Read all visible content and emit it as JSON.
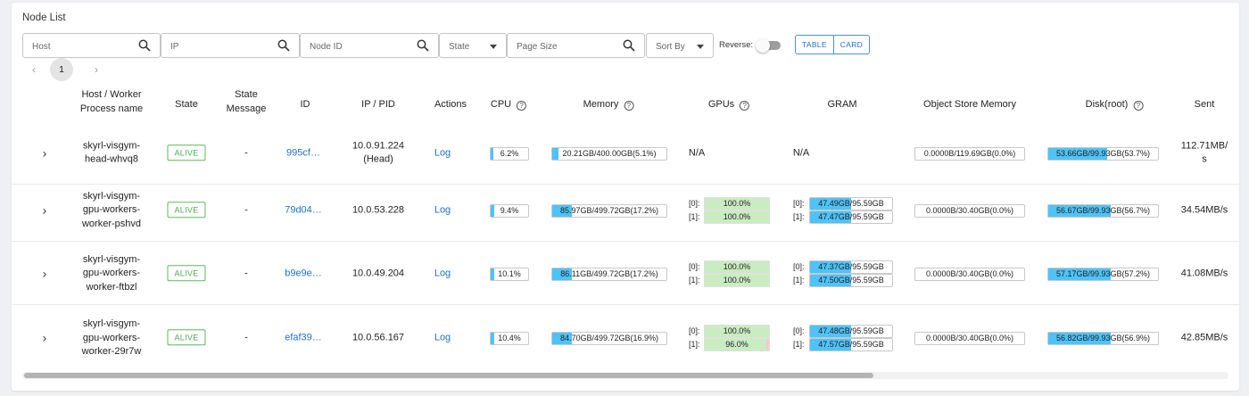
{
  "title": "Node List",
  "filters": {
    "host_placeholder": "Host",
    "ip_placeholder": "IP",
    "node_id_placeholder": "Node ID",
    "state_label": "State",
    "page_size_placeholder": "Page Size",
    "sort_by_label": "Sort By",
    "reverse_label": "Reverse:",
    "reverse_on": false
  },
  "view": {
    "table_label": "TABLE",
    "card_label": "CARD"
  },
  "pagination": {
    "prev": "‹",
    "current": "1",
    "next": "›"
  },
  "columns": {
    "host": "Host / Worker Process name",
    "state": "State",
    "state_message": "State Message",
    "id": "ID",
    "ip_pid": "IP / PID",
    "actions": "Actions",
    "cpu": "CPU",
    "memory": "Memory",
    "gpus": "GPUs",
    "gram": "GRAM",
    "object_store": "Object Store Memory",
    "disk": "Disk(root)",
    "sent": "Sent"
  },
  "help_glyph": "?",
  "expand_glyph": "›",
  "rows": [
    {
      "host": [
        "skyrl-visgym-",
        "head-whvq8"
      ],
      "state": "ALIVE",
      "state_message": "-",
      "id": "995cf…",
      "ip": [
        "10.0.91.224",
        "(Head)"
      ],
      "action": "Log",
      "cpu": {
        "text": "6.2%",
        "pct": 6.2
      },
      "memory": {
        "text": "20.21GB/400.00GB(5.1%)",
        "pct": 5.1
      },
      "gpus_na": "N/A",
      "gram_na": "N/A",
      "gpus": [],
      "gram": [],
      "object_store": "0.0000B/119.69GB(0.0%)",
      "disk": {
        "text": "53.66GB/99.93GB(53.7%)",
        "pct": 53.7
      },
      "sent": [
        "112.71MB/",
        "s"
      ]
    },
    {
      "host": [
        "skyrl-visgym-",
        "gpu-workers-",
        "worker-pshvd"
      ],
      "state": "ALIVE",
      "state_message": "-",
      "id": "79d04…",
      "ip": [
        "10.0.53.228"
      ],
      "action": "Log",
      "cpu": {
        "text": "9.4%",
        "pct": 9.4
      },
      "memory": {
        "text": "85.97GB/499.72GB(17.2%)",
        "pct": 17.2
      },
      "gpus": [
        {
          "label": "[0]:",
          "text": "100.0%",
          "pct": 100
        },
        {
          "label": "[1]:",
          "text": "100.0%",
          "pct": 100
        }
      ],
      "gram": [
        {
          "label": "[0]:",
          "text": "47.49GB/95.59GB",
          "pct": 49.7
        },
        {
          "label": "[1]:",
          "text": "47.47GB/95.59GB",
          "pct": 49.7
        }
      ],
      "object_store": "0.0000B/30.40GB(0.0%)",
      "disk": {
        "text": "56.67GB/99.93GB(56.7%)",
        "pct": 56.7
      },
      "sent": [
        "34.54MB/s"
      ]
    },
    {
      "host": [
        "skyrl-visgym-",
        "gpu-workers-",
        "worker-ftbzl"
      ],
      "state": "ALIVE",
      "state_message": "-",
      "id": "b9e9e…",
      "ip": [
        "10.0.49.204"
      ],
      "action": "Log",
      "cpu": {
        "text": "10.1%",
        "pct": 10.1
      },
      "memory": {
        "text": "86.11GB/499.72GB(17.2%)",
        "pct": 17.2
      },
      "gpus": [
        {
          "label": "[0]:",
          "text": "100.0%",
          "pct": 100
        },
        {
          "label": "[1]:",
          "text": "100.0%",
          "pct": 100
        }
      ],
      "gram": [
        {
          "label": "[0]:",
          "text": "47.37GB/95.59GB",
          "pct": 49.6
        },
        {
          "label": "[1]:",
          "text": "47.50GB/95.59GB",
          "pct": 49.7
        }
      ],
      "object_store": "0.0000B/30.40GB(0.0%)",
      "disk": {
        "text": "57.17GB/99.93GB(57.2%)",
        "pct": 57.2
      },
      "sent": [
        "41.08MB/s"
      ]
    },
    {
      "host": [
        "skyrl-visgym-",
        "gpu-workers-",
        "worker-29r7w"
      ],
      "state": "ALIVE",
      "state_message": "-",
      "id": "efaf39…",
      "ip": [
        "10.0.56.167"
      ],
      "action": "Log",
      "cpu": {
        "text": "10.4%",
        "pct": 10.4
      },
      "memory": {
        "text": "84.70GB/499.72GB(16.9%)",
        "pct": 16.9
      },
      "gpus": [
        {
          "label": "[0]:",
          "text": "100.0%",
          "pct": 100
        },
        {
          "label": "[1]:",
          "text": "96.0%",
          "pct": 96
        }
      ],
      "gram": [
        {
          "label": "[0]:",
          "text": "47.48GB/95.59GB",
          "pct": 49.7
        },
        {
          "label": "[1]:",
          "text": "47.57GB/95.59GB",
          "pct": 49.8
        }
      ],
      "object_store": "0.0000B/30.40GB(0.0%)",
      "disk": {
        "text": "56.82GB/99.93GB(56.9%)",
        "pct": 56.9
      },
      "sent": [
        "42.85MB/s"
      ]
    }
  ],
  "colors": {
    "bar_fill": "#4fc3f7",
    "gpu_used": "#c9ecc0",
    "gpu_bg": "#f6caca",
    "alive": "#4cae4c",
    "link": "#1e6fc7"
  },
  "icons": {
    "search": "search-icon",
    "dropdown": "caret-down-icon",
    "expand": "chevron-right-icon"
  }
}
